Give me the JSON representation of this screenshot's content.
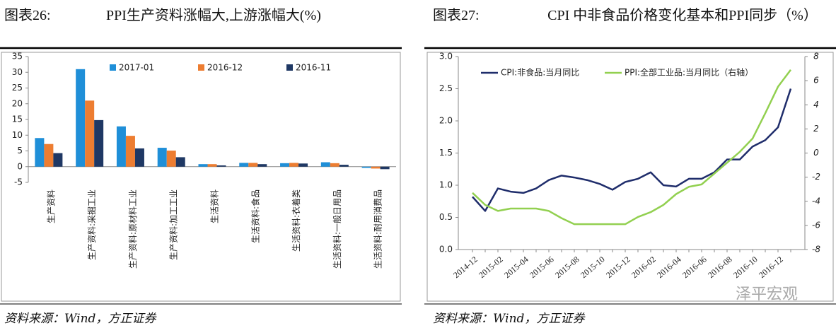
{
  "chart_data": [
    {
      "type": "bar",
      "label": "图表26:",
      "title": "PPI生产资料涨幅大,上游涨幅大(%)",
      "source": "资料来源：Wind，方正证券",
      "categories": [
        "生产资料",
        "生产资料:采掘工业",
        "生产资料:原材料工业",
        "生产资料:加工工业",
        "生活资料",
        "生活资料:食品",
        "生活资料:衣着类",
        "生活资料:一般日用品",
        "生活资料:耐用消费品"
      ],
      "series": [
        {
          "name": "2017-01",
          "color": "#1f8fd8",
          "values": [
            9.1,
            31.0,
            12.8,
            6.0,
            0.8,
            1.2,
            1.1,
            1.4,
            -0.4
          ]
        },
        {
          "name": "2016-12",
          "color": "#ed7d31",
          "values": [
            7.2,
            21.0,
            9.8,
            5.1,
            0.8,
            1.2,
            1.2,
            1.1,
            -0.6
          ]
        },
        {
          "name": "2016-11",
          "color": "#1f3864",
          "values": [
            4.3,
            14.8,
            5.8,
            3.0,
            0.4,
            0.8,
            1.0,
            0.6,
            -0.8
          ]
        }
      ],
      "ylim": [
        -5,
        35
      ],
      "yticks": [
        -5,
        0,
        5,
        10,
        15,
        20,
        25,
        30,
        35
      ]
    },
    {
      "type": "line",
      "label": "图表27:",
      "title": "CPI 中非食品价格变化基本和PPI同步（%）",
      "source": "资料来源：Wind，方正证券",
      "watermark": "泽平宏观",
      "categories": [
        "2014-12",
        null,
        "2015-02",
        null,
        "2015-04",
        null,
        "2015-06",
        null,
        "2015-08",
        null,
        "2015-10",
        null,
        "2015-12",
        null,
        "2016-02",
        null,
        "2016-04",
        null,
        "2016-06",
        null,
        "2016-08",
        null,
        "2016-10",
        null,
        "2016-12",
        null
      ],
      "series": [
        {
          "name": "CPI:非食品:当月同比",
          "color": "#1f2d6b",
          "values": [
            0.82,
            0.6,
            0.95,
            0.9,
            0.88,
            0.95,
            1.08,
            1.15,
            1.12,
            1.08,
            1.02,
            0.93,
            1.05,
            1.1,
            1.2,
            1.0,
            0.98,
            1.1,
            1.1,
            1.2,
            1.4,
            1.4,
            1.6,
            1.7,
            1.9,
            2.5
          ]
        },
        {
          "name": "PPI:全部工业品:当月同比（右轴）",
          "color": "#92d050",
          "axis": "y2",
          "values": [
            -3.3,
            -4.3,
            -4.8,
            -4.6,
            -4.6,
            -4.6,
            -4.8,
            -5.4,
            -5.9,
            -5.9,
            -5.9,
            -5.9,
            -5.9,
            -5.3,
            -4.9,
            -4.3,
            -3.4,
            -2.8,
            -2.6,
            -1.7,
            -0.8,
            0.1,
            1.2,
            3.3,
            5.5,
            6.9
          ]
        }
      ],
      "ylim": [
        0,
        3
      ],
      "yticks": [
        {
          "value": 0,
          "label": "0.0"
        },
        0.5,
        {
          "value": 1,
          "label": "1.0"
        },
        1.5,
        {
          "value": 2,
          "label": "2.0"
        },
        2.5,
        {
          "value": 3,
          "label": "3.0"
        }
      ],
      "y2lim": [
        -8,
        8
      ],
      "y2ticks": [
        -8,
        -6,
        -4,
        -2,
        0,
        2,
        4,
        6,
        8
      ]
    }
  ]
}
